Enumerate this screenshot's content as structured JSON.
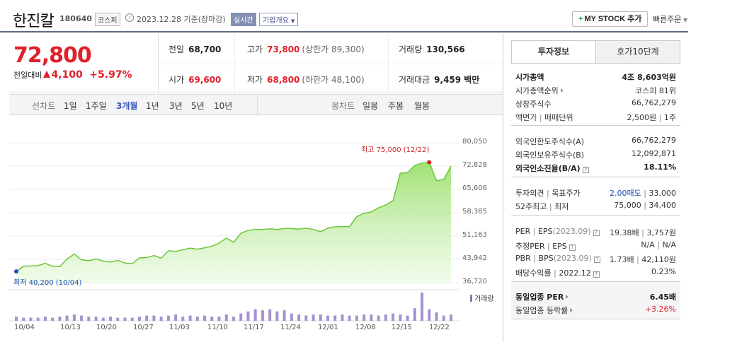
{
  "header": {
    "name": "한진칼",
    "code": "180640",
    "market": "코스피",
    "date_text": "2023.12.28 기준(장마감)",
    "live_label": "실시간",
    "overview_label": "기업개요",
    "mystock_label": "MY STOCK 추가",
    "quick_order_label": "빠른주문"
  },
  "price": {
    "current": "72,800",
    "change_label": "전일대비",
    "change_value": "4,100",
    "change_pct": "+5.97%"
  },
  "quote": {
    "prev_close_label": "전일",
    "prev_close": "68,700",
    "high_label": "고가",
    "high": "73,800",
    "upper_limit": "(상한가 89,300)",
    "volume_label": "거래량",
    "volume": "130,566",
    "open_label": "시가",
    "open": "69,600",
    "low_label": "저가",
    "low": "68,800",
    "lower_limit": "(하한가 48,100)",
    "amount_label": "거래대금",
    "amount": "9,459 백만"
  },
  "periods": {
    "line_label": "선차트",
    "items": [
      "1일",
      "1주일",
      "3개월",
      "1년",
      "3년",
      "5년",
      "10년"
    ],
    "selected": "3개월",
    "candle_label": "봉차트",
    "candle_items": [
      "일봉",
      "주봉",
      "월봉"
    ]
  },
  "chart_data": {
    "type": "area",
    "y_ticks": [
      "80,050",
      "72,828",
      "65,606",
      "58,385",
      "51,163",
      "43,942",
      "36,720"
    ],
    "ylim": [
      36720,
      80050
    ],
    "x_ticks": [
      "10/04",
      "10/13",
      "10/20",
      "10/27",
      "11/03",
      "11/10",
      "11/17",
      "11/24",
      "12/01",
      "12/08",
      "12/15",
      "12/22"
    ],
    "high_label": "최고 75,000 (12/22)",
    "low_label": "최저 40,200 (10/04)",
    "volume_label": "거래량",
    "series": [
      {
        "values": [
          40200,
          41800,
          41900,
          42000,
          42700,
          41800,
          41700,
          44000,
          45600,
          43800,
          43500,
          44100,
          43400,
          43100,
          43600,
          42800,
          42600,
          44400,
          44500,
          45100,
          44300,
          46600,
          46400,
          46900,
          47400,
          47100,
          47500,
          48000,
          49000,
          50500,
          49200,
          52000,
          52900,
          53200,
          53200,
          53400,
          53200,
          53500,
          53500,
          53300,
          53600,
          53200,
          52500,
          53600,
          54000,
          54100,
          54100,
          57200,
          58200,
          58600,
          59900,
          60800,
          62100,
          70600,
          70800,
          73000,
          73800,
          74000,
          68300,
          68700,
          72800
        ]
      }
    ],
    "volume": [
      4,
      3,
      3,
      3,
      4,
      3,
      4,
      5,
      6,
      5,
      4,
      4,
      3,
      4,
      3,
      3,
      3,
      4,
      5,
      5,
      4,
      5,
      6,
      4,
      5,
      4,
      5,
      4,
      4,
      6,
      4,
      7,
      9,
      11,
      10,
      11,
      9,
      10,
      7,
      6,
      5,
      6,
      6,
      5,
      5,
      6,
      5,
      5,
      6,
      6,
      5,
      6,
      7,
      6,
      5,
      12,
      27,
      11,
      8,
      5,
      6
    ]
  },
  "invest": {
    "tab_active": "투자정보",
    "tab_other": "호가10단계",
    "market_cap_label": "시가총액",
    "market_cap": "4조 8,603억원",
    "rank_label": "시가총액순위",
    "rank": "코스피 81위",
    "shares_label": "상장주식수",
    "shares": "66,762,279",
    "par_label": "액면가",
    "unit_label": "매매단위",
    "par": "2,500원",
    "unit": "1주",
    "foreign_limit_label": "외국인한도주식수(A)",
    "foreign_limit": "66,762,279",
    "foreign_hold_label": "외국인보유주식수(B)",
    "foreign_hold": "12,092,871",
    "foreign_ratio_label": "외국인소진율(B/A)",
    "foreign_ratio": "18.11%",
    "opinion_label": "투자의견",
    "target_label": "목표주가",
    "opinion": "2.00매도",
    "target": "33,000",
    "w52_label": "52주최고",
    "w52_low_label": "최저",
    "w52_high": "75,000",
    "w52_low": "34,400",
    "per_label": "PER",
    "eps_label": "EPS",
    "per_period": "(2023.09)",
    "per": "19.38배",
    "eps": "3,757원",
    "est_per_label": "추정PER",
    "est_eps_label": "EPS",
    "est_per": "N/A",
    "est_eps": "N/A",
    "pbr_label": "PBR",
    "bps_label": "BPS",
    "pbr_period": "(2023.09)",
    "pbr": "1.73배",
    "bps": "42,110원",
    "div_label": "배당수익률",
    "div_period": "2022.12",
    "div": "0.23%",
    "sector_per_label": "동일업종 PER",
    "sector_per": "6.45배",
    "sector_chg_label": "동일업종 등락률",
    "sector_chg": "+3.26%"
  }
}
